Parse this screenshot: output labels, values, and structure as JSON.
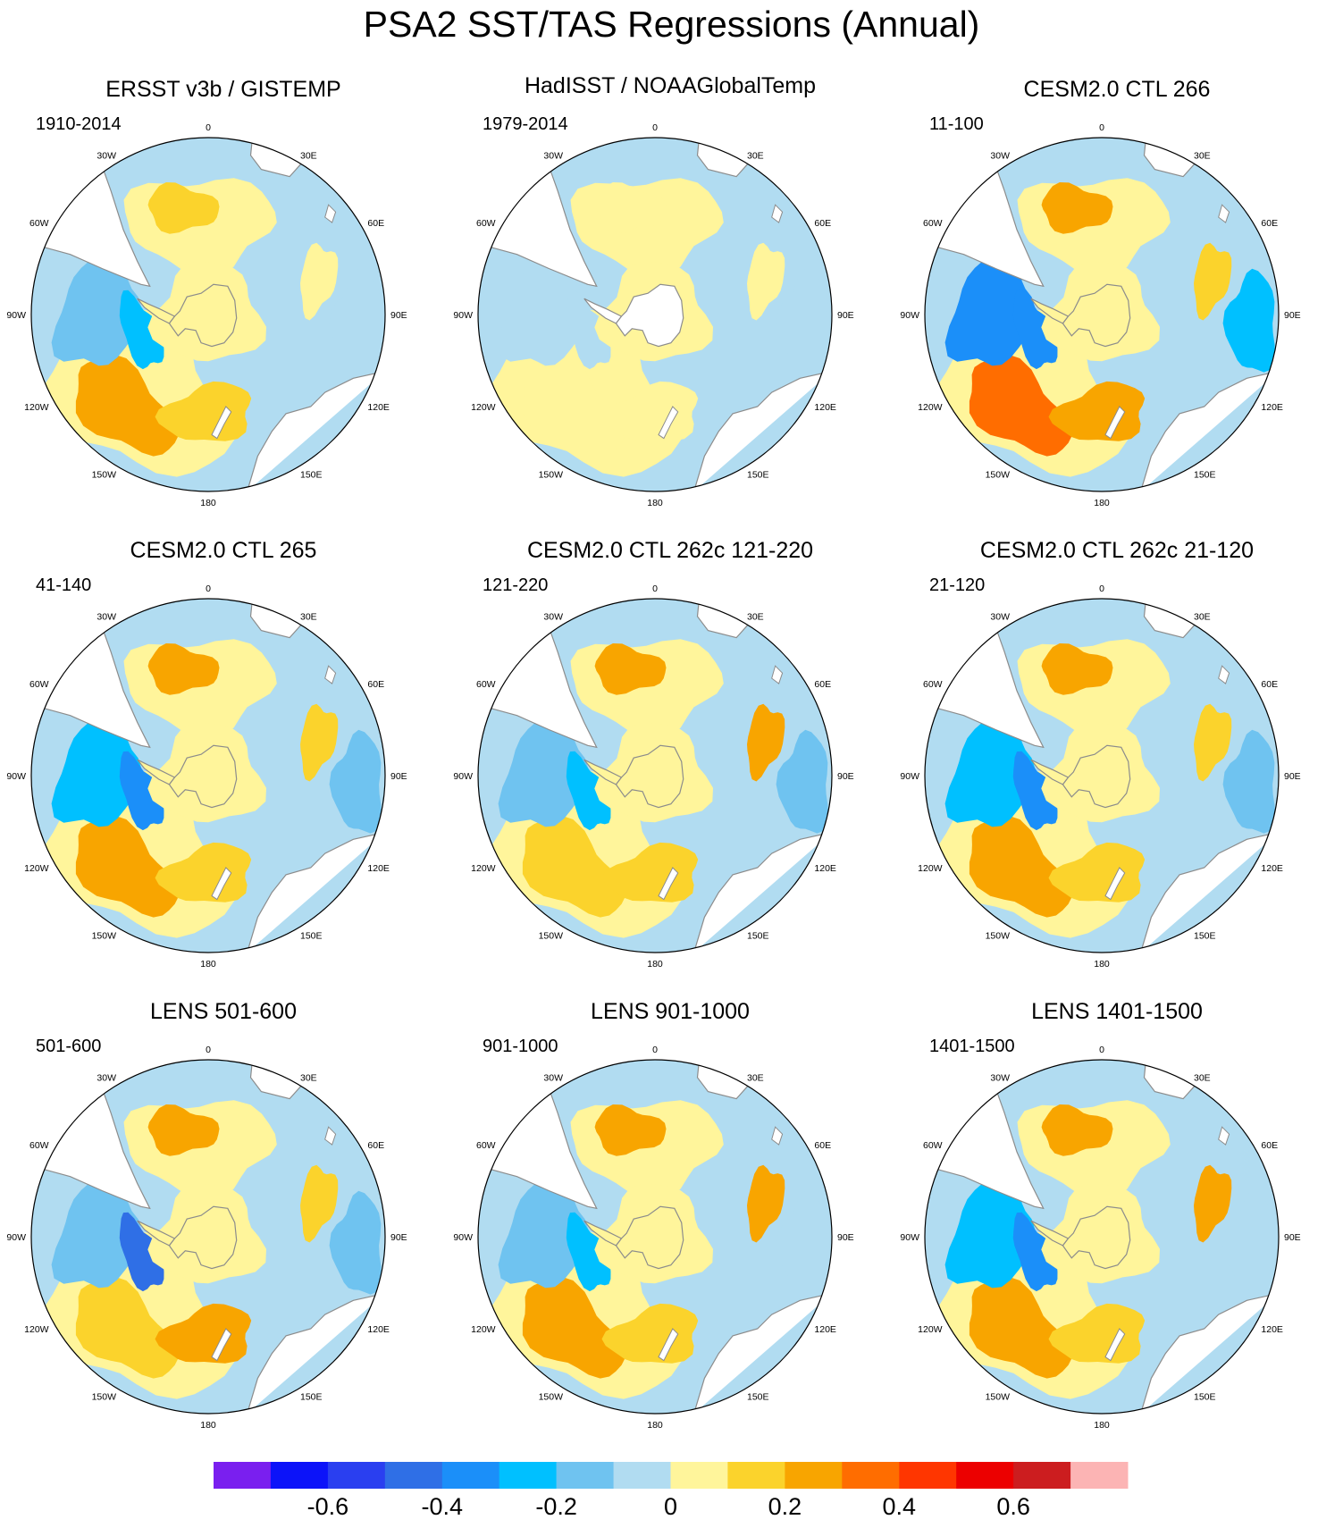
{
  "title": "PSA2 SST/TAS Regressions (Annual)",
  "longitude_labels": [
    "0",
    "30E",
    "60E",
    "90E",
    "120E",
    "150E",
    "180",
    "150W",
    "120W",
    "90W",
    "60W",
    "30W"
  ],
  "colors": {
    "background": "#ffffff",
    "land_unmasked": "#ffffff",
    "coast": "#8c8c8c"
  },
  "chart_data": {
    "type": "map",
    "projection": "south-polar-stereographic",
    "variable": "SST/TAS regression on PSA2 index",
    "panels": [
      {
        "title": "ERSST v3b / GISTEMP",
        "period": "1910-2014",
        "features": {
          "pac_warm": 0.2,
          "pac_cool": -0.15,
          "atl_warm": 0.1,
          "ind_warm": 0.05,
          "ross_warm": 0.15,
          "amund_cool": -0.25,
          "east_cool": -0.05,
          "ant_warm": 0.05,
          "ant_mask": false
        }
      },
      {
        "title": "HadISST / NOAAGlobalTemp",
        "period": "1979-2014",
        "features": {
          "pac_warm": 0.08,
          "pac_cool": -0.05,
          "atl_warm": 0.05,
          "ind_warm": 0.05,
          "ross_warm": 0.05,
          "amund_cool": -0.05,
          "east_cool": -0.05,
          "ant_warm": 0.0,
          "ant_mask": true
        }
      },
      {
        "title": "CESM2.0 CTL 266",
        "period": "11-100",
        "features": {
          "pac_warm": 0.3,
          "pac_cool": -0.35,
          "atl_warm": 0.25,
          "ind_warm": 0.15,
          "ross_warm": 0.25,
          "amund_cool": -0.35,
          "east_cool": -0.25,
          "ant_warm": 0.05,
          "ant_mask": false
        }
      },
      {
        "title": "CESM2.0 CTL 265",
        "period": "41-140",
        "features": {
          "pac_warm": 0.2,
          "pac_cool": -0.25,
          "atl_warm": 0.25,
          "ind_warm": 0.15,
          "ross_warm": 0.1,
          "amund_cool": -0.35,
          "east_cool": -0.15,
          "ant_warm": 0.05,
          "ant_mask": false
        }
      },
      {
        "title": "CESM2.0 CTL 262c 121-220",
        "period": "121-220",
        "features": {
          "pac_warm": 0.15,
          "pac_cool": -0.15,
          "atl_warm": 0.25,
          "ind_warm": 0.2,
          "ross_warm": 0.15,
          "amund_cool": -0.3,
          "east_cool": -0.15,
          "ant_warm": 0.05,
          "ant_mask": false
        }
      },
      {
        "title": "CESM2.0 CTL 262c 21-120",
        "period": "21-120",
        "features": {
          "pac_warm": 0.25,
          "pac_cool": -0.25,
          "atl_warm": 0.25,
          "ind_warm": 0.15,
          "ross_warm": 0.1,
          "amund_cool": -0.35,
          "east_cool": -0.15,
          "ant_warm": 0.05,
          "ant_mask": false
        }
      },
      {
        "title": "LENS 501-600",
        "period": "501-600",
        "features": {
          "pac_warm": 0.15,
          "pac_cool": -0.15,
          "atl_warm": 0.2,
          "ind_warm": 0.15,
          "ross_warm": 0.25,
          "amund_cool": -0.45,
          "east_cool": -0.15,
          "ant_warm": 0.05,
          "ant_mask": false
        }
      },
      {
        "title": "LENS 901-1000",
        "period": "901-1000",
        "features": {
          "pac_warm": 0.2,
          "pac_cool": -0.2,
          "atl_warm": 0.2,
          "ind_warm": 0.2,
          "ross_warm": 0.15,
          "amund_cool": -0.3,
          "east_cool": -0.1,
          "ant_warm": 0.05,
          "ant_mask": false
        }
      },
      {
        "title": "LENS 1401-1500",
        "period": "1401-1500",
        "features": {
          "pac_warm": 0.25,
          "pac_cool": -0.25,
          "atl_warm": 0.25,
          "ind_warm": 0.25,
          "ross_warm": 0.1,
          "amund_cool": -0.35,
          "east_cool": -0.1,
          "ant_warm": 0.05,
          "ant_mask": false
        }
      }
    ],
    "colorbar": {
      "boundaries": [
        -0.7,
        -0.6,
        -0.5,
        -0.4,
        -0.3,
        -0.2,
        -0.1,
        0,
        0.1,
        0.2,
        0.3,
        0.4,
        0.5,
        0.6,
        0.7
      ],
      "colors": [
        "#7a1fef",
        "#0c13f9",
        "#2a3ff0",
        "#2f6fe6",
        "#1b8ff9",
        "#00c0ff",
        "#6fc3f0",
        "#b1dcf1",
        "#fff59b",
        "#fbd32c",
        "#f8a500",
        "#ff6d00",
        "#ff3600",
        "#ec0000",
        "#cc1d1f",
        "#fcb4b4"
      ],
      "tick_values": [
        -0.6,
        -0.4,
        -0.2,
        0,
        0.2,
        0.4,
        0.6
      ],
      "tick_labels": [
        "-0.6",
        "-0.4",
        "-0.2",
        "0",
        "0.2",
        "0.4",
        "0.6"
      ]
    }
  }
}
